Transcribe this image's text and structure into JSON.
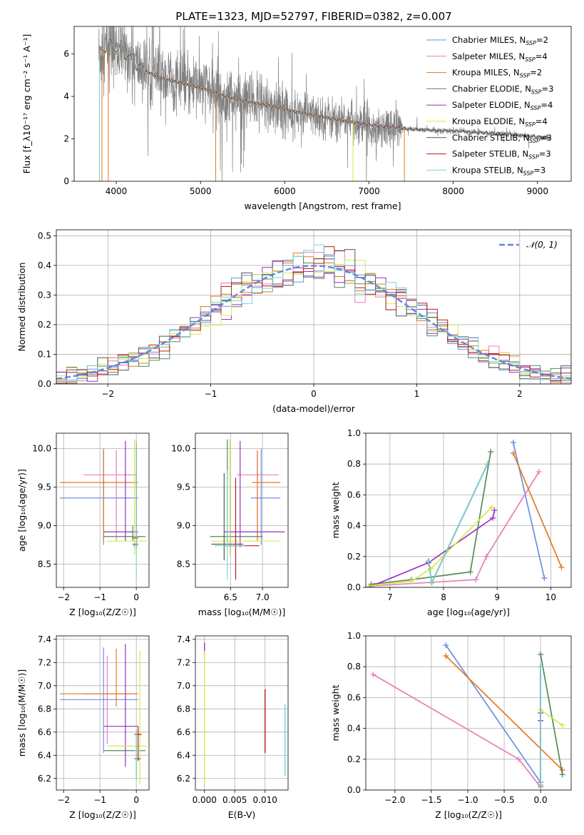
{
  "title": "PLATE=1323, MJD=52797, FIBERID=0382, z=0.007",
  "colors": {
    "Chabrier MILES": "#6b8fe0",
    "Salpeter MILES": "#e87fb8",
    "Kroupa MILES": "#e27a1f",
    "Chabrier ELODIE": "#568a58",
    "Salpeter ELODIE": "#9b2fc0",
    "Kroupa ELODIE": "#d6ea4a",
    "Chabrier STELIB": "#555555",
    "Salpeter STELIB": "#b51c1c",
    "Kroupa STELIB": "#74d6d8",
    "data": "#808080"
  },
  "chart_data": [
    {
      "id": "spectrum",
      "type": "line",
      "xlabel": "wavelength [Angstrom, rest frame]",
      "ylabel": "Flux [f_λ10⁻¹⁷ erg cm⁻² s⁻¹ A⁻¹]",
      "xlim": [
        3500,
        9400
      ],
      "ylim": [
        0,
        7.3
      ],
      "xticks": [
        "4000",
        "5000",
        "6000",
        "7000",
        "8000",
        "9000"
      ],
      "yticks": [
        "0",
        "2",
        "4",
        "6"
      ],
      "legend_position": "top-right",
      "legend": [
        {
          "model": "Chabrier MILES",
          "nssp": "2"
        },
        {
          "model": "Salpeter MILES",
          "nssp": "4"
        },
        {
          "model": "Kroupa MILES",
          "nssp": "2"
        },
        {
          "model": "Chabrier ELODIE",
          "nssp": "3"
        },
        {
          "model": "Salpeter ELODIE",
          "nssp": "4"
        },
        {
          "model": "Kroupa ELODIE",
          "nssp": "4"
        },
        {
          "model": "Chabrier STELIB",
          "nssp": "3"
        },
        {
          "model": "Salpeter STELIB",
          "nssp": "3"
        },
        {
          "model": "Kroupa STELIB",
          "nssp": "3"
        }
      ],
      "continuum": {
        "x": [
          3780,
          3850,
          3950,
          4050,
          4150,
          4300,
          4500,
          4700,
          4900,
          5100,
          5300,
          5500,
          5700,
          5900,
          6100,
          6300,
          6500,
          6700,
          6900,
          7100,
          7300,
          7500,
          7800,
          8100,
          8400,
          8700,
          9000,
          9150
        ],
        "y": [
          5.9,
          6.3,
          6.4,
          6.2,
          5.9,
          5.3,
          4.9,
          4.7,
          4.5,
          4.3,
          4.0,
          3.8,
          3.65,
          3.5,
          3.3,
          3.15,
          3.0,
          2.85,
          2.72,
          2.62,
          2.55,
          2.45,
          2.4,
          2.35,
          2.28,
          2.2,
          2.1,
          2.05
        ]
      },
      "data_range": [
        3790,
        9160
      ],
      "model_ranges": {
        "MILES": [
          3790,
          7420
        ],
        "ELODIE": [
          3800,
          6800
        ],
        "STELIB": [
          3800,
          9130
        ]
      }
    },
    {
      "id": "residuals",
      "type": "histogram",
      "xlabel": "(data-model)/error",
      "ylabel": "Normed distribution",
      "xlim": [
        -2.5,
        2.5
      ],
      "ylim": [
        0,
        0.52
      ],
      "xticks": [
        "−2",
        "−1",
        "0",
        "1",
        "2"
      ],
      "yticks": [
        "0.0",
        "0.1",
        "0.2",
        "0.3",
        "0.4",
        "0.5"
      ],
      "legend_position": "top-right",
      "reference_label": "𝒩(0, 1)",
      "grid": true
    },
    {
      "id": "age-vs-Z",
      "type": "errorbar",
      "xlabel": "Z [log₁₀(Z/Z☉)]",
      "ylabel": "age  [log₁₀(age/yr)]",
      "xlim": [
        -2.2,
        0.35
      ],
      "ylim": [
        8.2,
        10.2
      ],
      "xticks": [
        "−2",
        "−1",
        "0"
      ],
      "yticks": [
        "8.5",
        "9.0",
        "9.5",
        "10.0"
      ],
      "points": [
        {
          "model": "Chabrier MILES",
          "x": -0.9,
          "xlo": -2.1,
          "xhi": 0.05,
          "y": 9.36,
          "ylo": 8.75,
          "yhi": 10.0
        },
        {
          "model": "Salpeter MILES",
          "x": -0.55,
          "xlo": -1.45,
          "xhi": 0.0,
          "y": 9.66,
          "ylo": 8.8,
          "yhi": 9.98
        },
        {
          "model": "Kroupa MILES",
          "x": -0.9,
          "xlo": -2.1,
          "xhi": 0.05,
          "y": 9.56,
          "ylo": 8.8,
          "yhi": 9.98
        },
        {
          "model": "Chabrier ELODIE",
          "x": -0.1,
          "xlo": -0.9,
          "xhi": 0.25,
          "y": 8.86,
          "ylo": 8.8,
          "yhi": 9.0
        },
        {
          "model": "Salpeter ELODIE",
          "x": -0.3,
          "xlo": -0.9,
          "xhi": 0.05,
          "y": 8.92,
          "ylo": 8.8,
          "yhi": 10.1
        },
        {
          "model": "Kroupa ELODIE",
          "x": -0.05,
          "xlo": -0.8,
          "xhi": 0.3,
          "y": 8.8,
          "ylo": 8.62,
          "yhi": 10.12
        },
        {
          "model": "Chabrier STELIB",
          "x": 0.0,
          "xlo": -0.1,
          "xhi": 0.05,
          "y": 8.76,
          "ylo": 8.7,
          "yhi": 10.05
        },
        {
          "model": "Salpeter STELIB",
          "x": 0.0,
          "xlo": -0.1,
          "xhi": 0.05,
          "y": 8.84,
          "ylo": 8.7,
          "yhi": 10.08
        },
        {
          "model": "Kroupa STELIB",
          "x": 0.0,
          "xlo": -0.1,
          "xhi": 0.05,
          "y": 8.74,
          "ylo": 8.3,
          "yhi": 10.1
        }
      ]
    },
    {
      "id": "age-vs-mass",
      "type": "errorbar",
      "xlabel": "mass [log₁₀(M/M☉)]",
      "ylabel": "",
      "xlim": [
        5.95,
        7.4
      ],
      "ylim": [
        8.2,
        10.2
      ],
      "xticks": [
        "6.5",
        "7.0"
      ],
      "yticks": [
        "8.5",
        "9.0",
        "9.5",
        "10.0"
      ],
      "points": [
        {
          "model": "Chabrier MILES",
          "x": 6.98,
          "xlo": 6.82,
          "xhi": 7.28,
          "y": 9.36,
          "ylo": 8.75,
          "yhi": 10.0
        },
        {
          "model": "Salpeter MILES",
          "x": 6.92,
          "xlo": 6.6,
          "xhi": 7.25,
          "y": 9.66,
          "ylo": 8.8,
          "yhi": 9.98
        },
        {
          "model": "Kroupa MILES",
          "x": 6.92,
          "xlo": 6.84,
          "xhi": 7.28,
          "y": 9.56,
          "ylo": 8.8,
          "yhi": 9.98
        },
        {
          "model": "Chabrier ELODIE",
          "x": 6.45,
          "xlo": 6.18,
          "xhi": 7.0,
          "y": 8.86,
          "ylo": 8.8,
          "yhi": 10.12
        },
        {
          "model": "Salpeter ELODIE",
          "x": 6.65,
          "xlo": 6.4,
          "xhi": 7.35,
          "y": 8.92,
          "ylo": 8.72,
          "yhi": 10.1
        },
        {
          "model": "Kroupa ELODIE",
          "x": 6.49,
          "xlo": 6.2,
          "xhi": 7.28,
          "y": 8.8,
          "ylo": 8.62,
          "yhi": 10.12
        },
        {
          "model": "Chabrier STELIB",
          "x": 6.4,
          "xlo": 6.2,
          "xhi": 6.7,
          "y": 8.76,
          "ylo": 8.55,
          "yhi": 9.68
        },
        {
          "model": "Salpeter STELIB",
          "x": 6.58,
          "xlo": 6.4,
          "xhi": 6.95,
          "y": 8.74,
          "ylo": 8.3,
          "yhi": 9.62
        },
        {
          "model": "Kroupa STELIB",
          "x": 6.45,
          "xlo": 6.25,
          "xhi": 6.72,
          "y": 8.74,
          "ylo": 8.3,
          "yhi": 9.72
        }
      ]
    },
    {
      "id": "weight-vs-age",
      "type": "line",
      "xlabel": "age  [log₁₀(age/yr)]",
      "ylabel": "mass weight",
      "xlim": [
        6.55,
        10.38
      ],
      "ylim": [
        0,
        1.0
      ],
      "xticks": [
        "7",
        "8",
        "9",
        "10"
      ],
      "yticks": [
        "0.0",
        "0.2",
        "0.4",
        "0.6",
        "0.8",
        "1.0"
      ],
      "series": [
        {
          "model": "Chabrier MILES",
          "x": [
            9.3,
            9.88
          ],
          "y": [
            0.94,
            0.06
          ]
        },
        {
          "model": "Salpeter MILES",
          "x": [
            6.7,
            8.6,
            8.8,
            9.78
          ],
          "y": [
            0.01,
            0.05,
            0.2,
            0.75
          ]
        },
        {
          "model": "Kroupa MILES",
          "x": [
            9.3,
            10.2
          ],
          "y": [
            0.87,
            0.13
          ]
        },
        {
          "model": "Chabrier ELODIE",
          "x": [
            6.65,
            7.4,
            8.5,
            8.88
          ],
          "y": [
            0.02,
            0.05,
            0.1,
            0.88
          ]
        },
        {
          "model": "Salpeter ELODIE",
          "x": [
            6.6,
            7.72,
            8.92,
            8.95
          ],
          "y": [
            0.0,
            0.16,
            0.45,
            0.5
          ]
        },
        {
          "model": "Kroupa ELODIE",
          "x": [
            6.6,
            7.4,
            7.76,
            8.9
          ],
          "y": [
            0.01,
            0.04,
            0.12,
            0.52
          ]
        },
        {
          "model": "Chabrier STELIB",
          "x": [
            7.72,
            7.78,
            8.82
          ],
          "y": [
            0.17,
            0.03,
            0.8
          ]
        },
        {
          "model": "Salpeter STELIB",
          "x": [
            7.72,
            7.78,
            8.82
          ],
          "y": [
            0.17,
            0.03,
            0.8
          ]
        },
        {
          "model": "Kroupa STELIB",
          "x": [
            7.72,
            7.78,
            8.82
          ],
          "y": [
            0.17,
            0.03,
            0.8
          ]
        }
      ]
    },
    {
      "id": "mass-vs-Z",
      "type": "errorbar",
      "xlabel": "Z [log₁₀(Z/Z☉)]",
      "ylabel": "mass [log₁₀(M/M☉)]",
      "xlim": [
        -2.2,
        0.35
      ],
      "ylim": [
        6.1,
        7.43
      ],
      "xticks": [
        "−2",
        "−1",
        "0"
      ],
      "yticks": [
        "6.2",
        "6.4",
        "6.6",
        "6.8",
        "7.0",
        "7.2",
        "7.4"
      ],
      "points": [
        {
          "model": "Chabrier MILES",
          "x": -0.9,
          "xlo": -2.1,
          "xhi": 0.05,
          "y": 6.88,
          "ylo": 6.42,
          "yhi": 7.33
        },
        {
          "model": "Salpeter MILES",
          "x": -0.8,
          "xlo": -1.45,
          "xhi": 0.0,
          "y": 6.93,
          "ylo": 6.5,
          "yhi": 7.26
        },
        {
          "model": "Kroupa MILES",
          "x": -0.55,
          "xlo": -2.1,
          "xhi": 0.05,
          "y": 6.93,
          "ylo": 6.82,
          "yhi": 7.32
        },
        {
          "model": "Chabrier ELODIE",
          "x": 0.0,
          "xlo": -0.9,
          "xhi": 0.25,
          "y": 6.44,
          "ylo": 6.38,
          "yhi": 6.5
        },
        {
          "model": "Salpeter ELODIE",
          "x": -0.3,
          "xlo": -0.9,
          "xhi": 0.05,
          "y": 6.65,
          "ylo": 6.3,
          "yhi": 7.36
        },
        {
          "model": "Kroupa ELODIE",
          "x": 0.1,
          "xlo": -0.8,
          "xhi": 0.3,
          "y": 6.48,
          "ylo": 6.15,
          "yhi": 7.3
        },
        {
          "model": "Chabrier STELIB",
          "x": 0.0,
          "xlo": -0.05,
          "xhi": 0.12,
          "y": 6.37,
          "ylo": 6.2,
          "yhi": 6.62
        },
        {
          "model": "Salpeter STELIB",
          "x": 0.05,
          "xlo": -0.05,
          "xhi": 0.15,
          "y": 6.58,
          "ylo": 6.35,
          "yhi": 6.65
        },
        {
          "model": "Kroupa STELIB",
          "x": 0.0,
          "xlo": -0.05,
          "xhi": 0.1,
          "y": 6.44,
          "ylo": 6.18,
          "yhi": 6.62
        }
      ]
    },
    {
      "id": "mass-vs-ebv",
      "type": "errorbar",
      "xlabel": "E(B-V)",
      "ylabel": "",
      "xlim": [
        -0.0015,
        0.0138
      ],
      "ylim": [
        6.1,
        7.43
      ],
      "xticks": [
        "0.000",
        "0.005",
        "0.010"
      ],
      "yticks": [
        "6.2",
        "6.4",
        "6.6",
        "6.8",
        "7.0",
        "7.2",
        "7.4"
      ],
      "segments": [
        {
          "model": "Salpeter ELODIE",
          "x": 0.0,
          "ylo": 7.24,
          "yhi": 7.37
        },
        {
          "model": "Kroupa ELODIE",
          "x": 0.0,
          "ylo": 6.15,
          "yhi": 7.3
        },
        {
          "model": "Salpeter STELIB",
          "x": 0.01,
          "ylo": 6.42,
          "yhi": 6.97
        },
        {
          "model": "Kroupa STELIB",
          "x": 0.0133,
          "ylo": 6.22,
          "yhi": 6.84
        }
      ]
    },
    {
      "id": "weight-vs-Z",
      "type": "line",
      "xlabel": "Z [log₁₀(Z/Z☉)]",
      "ylabel": "mass weight",
      "xlim": [
        -2.4,
        0.42
      ],
      "ylim": [
        0,
        1.0
      ],
      "xticks": [
        "−2.0",
        "−1.5",
        "−1.0",
        "−0.5",
        "0.0"
      ],
      "yticks": [
        "0.0",
        "0.2",
        "0.4",
        "0.6",
        "0.8",
        "1.0"
      ],
      "series": [
        {
          "model": "Chabrier MILES",
          "x": [
            -1.3,
            0.0
          ],
          "y": [
            0.94,
            0.05
          ]
        },
        {
          "model": "Salpeter MILES",
          "x": [
            -2.3,
            -0.3,
            0.0
          ],
          "y": [
            0.75,
            0.2,
            0.02
          ]
        },
        {
          "model": "Kroupa MILES",
          "x": [
            -1.3,
            0.3
          ],
          "y": [
            0.87,
            0.13
          ]
        },
        {
          "model": "Chabrier ELODIE",
          "x": [
            0.0,
            0.3
          ],
          "y": [
            0.88,
            0.1
          ]
        },
        {
          "model": "Salpeter ELODIE",
          "x": [
            0.0,
            0.0
          ],
          "y": [
            0.5,
            0.45
          ]
        },
        {
          "model": "Kroupa ELODIE",
          "x": [
            0.0,
            0.3
          ],
          "y": [
            0.52,
            0.42
          ]
        },
        {
          "model": "Chabrier STELIB",
          "x": [
            0.0,
            0.0
          ],
          "y": [
            0.8,
            0.03
          ]
        },
        {
          "model": "Salpeter STELIB",
          "x": [
            0.0,
            0.0
          ],
          "y": [
            0.8,
            0.03
          ]
        },
        {
          "model": "Kroupa STELIB",
          "x": [
            0.0,
            0.0
          ],
          "y": [
            0.8,
            0.03
          ]
        }
      ]
    }
  ]
}
